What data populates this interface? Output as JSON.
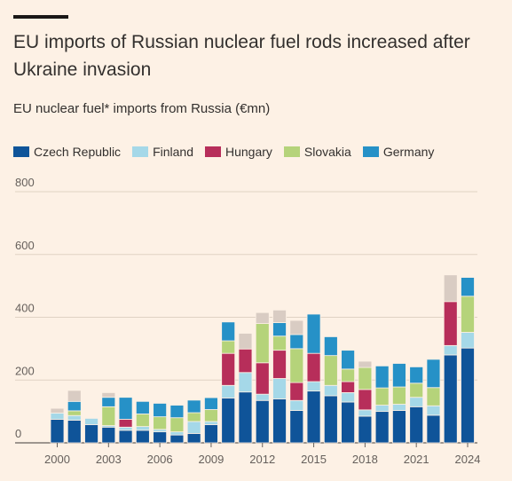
{
  "header": {
    "title": "EU imports of Russian nuclear fuel rods increased after Ukraine invasion",
    "subtitle": "EU nuclear fuel* imports from Russia (€mn)"
  },
  "colors": {
    "Czech Republic": "#0f5499",
    "Finland": "#a5d8e8",
    "Hungary": "#b72e5a",
    "Slovakia": "#b5d37a",
    "Germany": "#2691c7",
    "Other": "#d9ccc3"
  },
  "chart_data": {
    "type": "bar",
    "stacked": true,
    "title": "EU nuclear fuel* imports from Russia (€mn)",
    "xlabel": "",
    "ylabel": "",
    "ylim": [
      0,
      800
    ],
    "yticks": [
      0,
      200,
      400,
      600,
      800
    ],
    "xticks": [
      "2000",
      "2003",
      "2006",
      "2009",
      "2012",
      "2015",
      "2018",
      "2021",
      "2024"
    ],
    "grid": true,
    "legend": "top-left",
    "categories": [
      "2000",
      "2001",
      "2002",
      "2003",
      "2004",
      "2005",
      "2006",
      "2007",
      "2008",
      "2009",
      "2010",
      "2011",
      "2012",
      "2013",
      "2014",
      "2015",
      "2016",
      "2017",
      "2018",
      "2019",
      "2020",
      "2021",
      "2022",
      "2023",
      "2024"
    ],
    "series": [
      {
        "name": "Czech Republic",
        "values": [
          75,
          72,
          58,
          50,
          40,
          40,
          35,
          25,
          30,
          58,
          143,
          162,
          135,
          140,
          103,
          165,
          150,
          130,
          85,
          100,
          103,
          115,
          88,
          280,
          302
        ]
      },
      {
        "name": "Finland",
        "values": [
          20,
          15,
          20,
          5,
          10,
          12,
          8,
          10,
          38,
          10,
          40,
          62,
          20,
          65,
          32,
          30,
          33,
          30,
          20,
          20,
          20,
          30,
          30,
          30,
          50
        ]
      },
      {
        "name": "Hungary",
        "values": [
          0,
          0,
          0,
          0,
          25,
          0,
          0,
          0,
          0,
          0,
          102,
          75,
          100,
          90,
          57,
          90,
          0,
          35,
          65,
          0,
          0,
          0,
          0,
          140,
          0
        ]
      },
      {
        "name": "Slovakia",
        "values": [
          0,
          15,
          0,
          60,
          0,
          40,
          40,
          45,
          28,
          38,
          40,
          0,
          125,
          45,
          108,
          0,
          95,
          40,
          70,
          55,
          55,
          45,
          58,
          0,
          115
        ]
      },
      {
        "name": "Germany",
        "values": [
          0,
          30,
          0,
          30,
          70,
          40,
          43,
          40,
          40,
          38,
          60,
          0,
          0,
          43,
          45,
          125,
          60,
          60,
          0,
          70,
          75,
          52,
          90,
          0,
          60
        ]
      },
      {
        "name": "",
        "values": [
          15,
          35,
          0,
          15,
          0,
          0,
          0,
          0,
          0,
          0,
          0,
          50,
          35,
          40,
          45,
          0,
          0,
          0,
          20,
          0,
          0,
          0,
          0,
          85,
          0
        ]
      }
    ]
  }
}
